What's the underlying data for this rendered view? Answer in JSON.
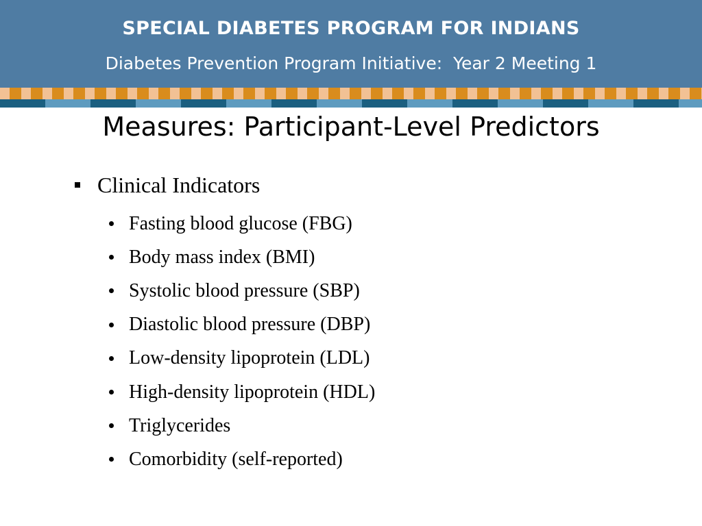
{
  "header": {
    "title": "SPECIAL DIABETES PROGRAM FOR INDIANS",
    "subtitle": "Diabetes Prevention Program Initiative:  Year 2 Meeting 1"
  },
  "slide": {
    "title": "Measures: Participant-Level Predictors"
  },
  "content": {
    "heading": "Clinical Indicators",
    "items": [
      "Fasting blood glucose (FBG)",
      "Body mass index (BMI)",
      "Systolic blood pressure (SBP)",
      "Diastolic blood pressure (DBP)",
      "Low-density lipoprotein (LDL)",
      "High-density lipoprotein (HDL)",
      "Triglycerides",
      "Comorbidity (self-reported)"
    ]
  },
  "colors": {
    "header_bg": "#4f7ca3",
    "border_orange": "#d98c1d",
    "border_light_orange": "#f2c194",
    "border_dark_blue": "#1b5f80",
    "border_light_blue": "#5e9bbf"
  }
}
